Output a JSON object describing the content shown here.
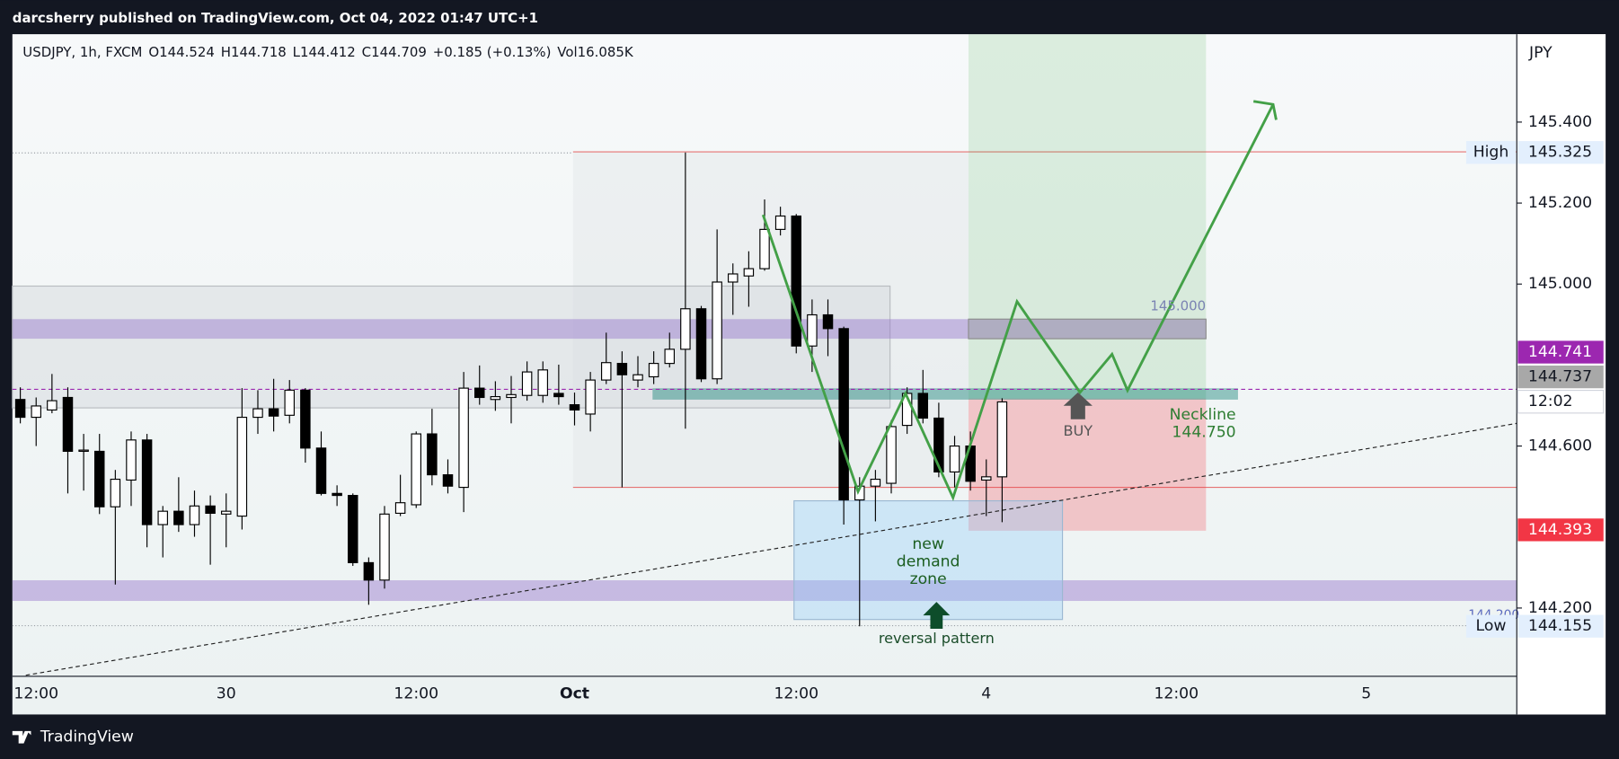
{
  "header": {
    "publisher": "darcsherry published on TradingView.com, Oct 04, 2022 01:47 UTC+1"
  },
  "footer": {
    "brand": "TradingView"
  },
  "chart_data": {
    "type": "candlestick",
    "title": "USDJPY, 1h, FXCM",
    "ohlc_readout": [
      "O144.524",
      "H144.718",
      "L144.412",
      "C144.709",
      "+0.185 (+0.13%)",
      "Vol16.085K"
    ],
    "currency": "JPY",
    "countdown": "12:02",
    "categories": [
      null,
      "12:00",
      null,
      null,
      null,
      null,
      null,
      null,
      null,
      null,
      null,
      null,
      null,
      "30",
      null,
      null,
      null,
      null,
      null,
      null,
      null,
      null,
      null,
      null,
      null,
      "12:00",
      null,
      null,
      null,
      null,
      null,
      null,
      null,
      null,
      null,
      "Oct",
      null,
      null,
      null,
      null,
      null,
      null,
      null,
      null,
      null,
      null,
      null,
      null,
      null,
      "12:00",
      null,
      null,
      null,
      null,
      null,
      null,
      null,
      null,
      null,
      null,
      null,
      "4",
      null,
      null,
      null,
      null,
      null,
      null,
      null,
      null,
      null,
      null,
      null,
      "12:00",
      null,
      null,
      null,
      null,
      null,
      null,
      null,
      null,
      null,
      null,
      null,
      "5",
      null,
      null,
      null,
      null,
      null,
      null,
      null,
      null,
      null
    ],
    "open": [
      144.715,
      144.671,
      144.689,
      144.72,
      144.587,
      144.587,
      144.45,
      144.516,
      144.615,
      144.406,
      144.439,
      144.406,
      144.452,
      144.432,
      144.427,
      144.671,
      144.692,
      144.676,
      144.738,
      144.595,
      144.483,
      144.478,
      144.312,
      144.269,
      144.434,
      144.455,
      144.63,
      144.529,
      144.498,
      144.743,
      144.715,
      144.72,
      144.725,
      144.725,
      144.73,
      144.702,
      144.679,
      144.763,
      144.804,
      144.763,
      144.771,
      144.804,
      144.839,
      144.939,
      144.766,
      145.005,
      145.02,
      145.038,
      145.135,
      145.168,
      144.847,
      144.924,
      144.89,
      144.467,
      144.501,
      144.508,
      144.651,
      144.73,
      144.669,
      144.536,
      144.6,
      144.516,
      144.524,
      null,
      null,
      null,
      null,
      null,
      null,
      null,
      null,
      null,
      null,
      null,
      null,
      null,
      null,
      null,
      null,
      null,
      null,
      null,
      null,
      null,
      null,
      null,
      null,
      null,
      null,
      null,
      null,
      null,
      null,
      null,
      null
    ],
    "high": [
      144.745,
      144.72,
      144.778,
      144.745,
      144.63,
      144.63,
      144.541,
      144.636,
      144.63,
      144.452,
      144.523,
      144.49,
      144.478,
      144.483,
      144.743,
      144.738,
      144.766,
      144.763,
      144.743,
      144.636,
      144.503,
      144.483,
      144.325,
      144.452,
      144.529,
      144.636,
      144.692,
      144.567,
      144.783,
      144.799,
      144.76,
      144.773,
      144.809,
      144.809,
      144.801,
      144.732,
      144.783,
      144.88,
      144.834,
      144.822,
      144.834,
      144.88,
      145.325,
      144.946,
      145.135,
      145.051,
      145.081,
      145.209,
      145.191,
      145.173,
      144.962,
      144.962,
      144.895,
      144.523,
      144.541,
      144.664,
      144.745,
      144.788,
      144.707,
      144.625,
      144.636,
      144.567,
      144.718,
      null,
      null,
      null,
      null,
      null,
      null,
      null,
      null,
      null,
      null,
      null,
      null,
      null,
      null,
      null,
      null,
      null,
      null,
      null,
      null,
      null,
      null,
      null,
      null,
      null,
      null,
      null,
      null,
      null,
      null,
      null,
      null
    ],
    "low": [
      144.656,
      144.6,
      144.681,
      144.483,
      144.49,
      144.432,
      144.258,
      144.452,
      144.35,
      144.325,
      144.388,
      144.376,
      144.307,
      144.35,
      144.394,
      144.63,
      144.636,
      144.656,
      144.559,
      144.478,
      144.452,
      144.304,
      144.208,
      144.248,
      144.427,
      144.447,
      144.503,
      144.483,
      144.437,
      144.702,
      144.687,
      144.656,
      144.712,
      144.707,
      144.702,
      144.651,
      144.636,
      144.753,
      144.498,
      144.745,
      144.753,
      144.794,
      144.643,
      144.758,
      144.753,
      144.924,
      144.944,
      145.033,
      145.12,
      144.829,
      144.783,
      144.822,
      144.406,
      144.155,
      144.414,
      144.483,
      144.63,
      144.656,
      144.523,
      144.498,
      144.49,
      144.427,
      144.412,
      null,
      null,
      null,
      null,
      null,
      null,
      null,
      null,
      null,
      null,
      null,
      null,
      null,
      null,
      null,
      null,
      null,
      null,
      null,
      null,
      null,
      null,
      null,
      null,
      null,
      null,
      null,
      null,
      null,
      null,
      null,
      null
    ],
    "close": [
      144.671,
      144.699,
      144.712,
      144.587,
      144.59,
      144.45,
      144.518,
      144.615,
      144.406,
      144.439,
      144.406,
      144.452,
      144.434,
      144.439,
      144.671,
      144.692,
      144.674,
      144.738,
      144.595,
      144.483,
      144.478,
      144.312,
      144.269,
      144.432,
      144.46,
      144.63,
      144.529,
      144.501,
      144.743,
      144.72,
      144.722,
      144.727,
      144.783,
      144.788,
      144.722,
      144.689,
      144.763,
      144.806,
      144.776,
      144.776,
      144.804,
      144.839,
      144.939,
      144.766,
      145.005,
      145.025,
      145.038,
      145.135,
      145.168,
      144.847,
      144.924,
      144.89,
      144.467,
      144.501,
      144.518,
      144.648,
      144.73,
      144.669,
      144.536,
      144.6,
      144.513,
      144.524,
      144.709,
      null,
      null,
      null,
      null,
      null,
      null,
      null,
      null,
      null,
      null,
      null,
      null,
      null,
      null,
      null,
      null,
      null,
      null,
      null,
      null,
      null,
      null,
      null,
      null,
      null,
      null,
      null,
      null,
      null,
      null,
      null,
      null
    ],
    "up_color": "#ffffff",
    "down_color": "#000000",
    "ylim": [
      144.034,
      145.617
    ],
    "yticks": [
      {
        "value": 145.4,
        "label": "145.400"
      },
      {
        "value": 145.2,
        "label": "145.200"
      },
      {
        "value": 145.0,
        "label": "145.000"
      },
      {
        "value": 144.6,
        "label": "144.600"
      },
      {
        "value": 144.2,
        "label": "144.200"
      }
    ],
    "grid": false,
    "price_labels": [
      {
        "name": "High",
        "value": 145.325,
        "label": "145.325",
        "color": "#e3effd"
      },
      {
        "value": 144.741,
        "label": "144.741",
        "color": "#9c27b0"
      },
      {
        "value": 144.737,
        "label": "144.737",
        "color": "#a8a8a8"
      },
      {
        "value": 144.393,
        "label": "144.393",
        "color": "#f23645"
      },
      {
        "name": "Low",
        "value": 144.155,
        "label": "144.155",
        "color": "#e3effd"
      }
    ],
    "annotations": [
      "145.000",
      "Neckline",
      "144.750",
      "BUY",
      "new",
      "demand",
      "zone",
      "reversal pattern",
      "144.200"
    ]
  }
}
